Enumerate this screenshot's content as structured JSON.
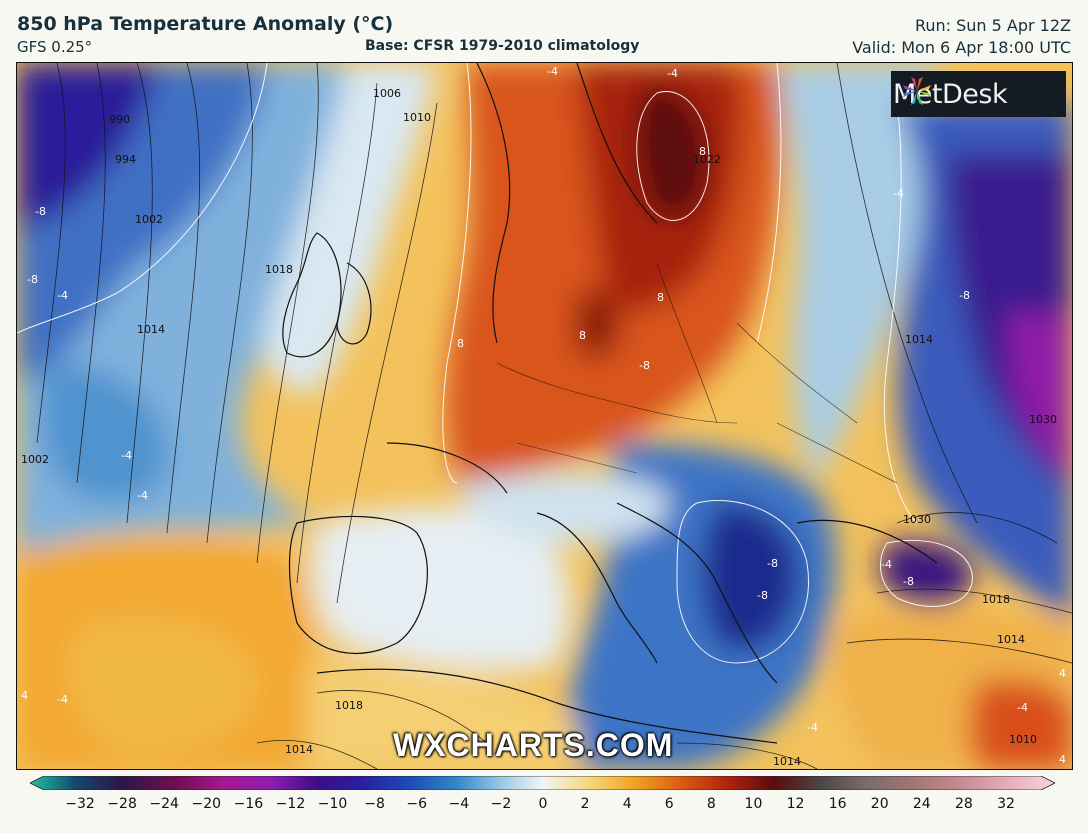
{
  "header": {
    "title": "850 hPa Temperature Anomaly (°C)",
    "model": "GFS 0.25°",
    "base": "Base: CFSR 1979-2010 climatology",
    "run": "Run: Sun 5 Apr 12Z",
    "valid": "Valid: Mon 6 Apr 18:00 UTC"
  },
  "branding": {
    "logo_text": "MetDesk",
    "watermark": "WXCHARTS.COM"
  },
  "legend": {
    "ticks": [
      "−32",
      "−28",
      "−24",
      "−20",
      "−16",
      "−12",
      "−10",
      "−8",
      "−6",
      "−4",
      "−2",
      "0",
      "2",
      "4",
      "6",
      "8",
      "10",
      "12",
      "16",
      "20",
      "24",
      "28",
      "32"
    ],
    "colors": [
      "#1fc3a0",
      "#15466c",
      "#2b1747",
      "#6c0f4f",
      "#a3198e",
      "#8d1fb0",
      "#3d0e86",
      "#2a1fa0",
      "#1c4cb5",
      "#2f86c9",
      "#9cc8e4",
      "#f2f4f6",
      "#f5d77c",
      "#f0a321",
      "#dc5b13",
      "#b02410",
      "#5a0c0c",
      "#4a4545",
      "#7a6b6b",
      "#a07575",
      "#c58890",
      "#e2aab6",
      "#f8d5df"
    ]
  },
  "map": {
    "isobar_labels": [
      "990",
      "994",
      "1002",
      "1006",
      "1010",
      "1014",
      "1018",
      "1002",
      "1014",
      "1022",
      "1030",
      "1018",
      "1014",
      "1018",
      "1014",
      "1010",
      "1030",
      "1014"
    ],
    "anomaly_labels": [
      "-8",
      "-8",
      "-4",
      "-4",
      "-4",
      "8",
      "8",
      "8",
      "8",
      "-8",
      "-8",
      "-4",
      "-8",
      "-8",
      "-8",
      "-4",
      "4",
      "4",
      "-4",
      "-4",
      "-4",
      "4",
      "-4",
      "-4"
    ]
  }
}
